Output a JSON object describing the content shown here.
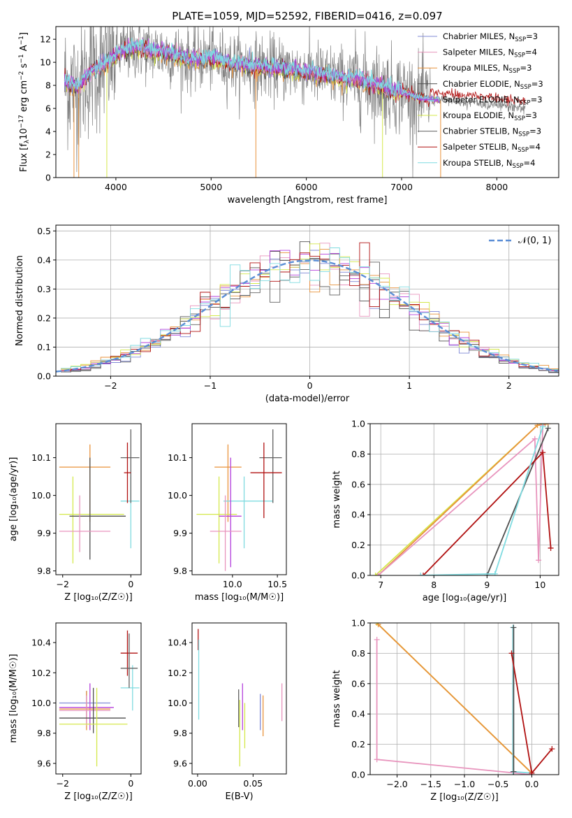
{
  "figure": {
    "title": "PLATE=1059, MJD=52592, FIBERID=0416, z=0.097"
  },
  "models": [
    {
      "id": "cm",
      "name": "Chabrier MILES",
      "nssp": "3",
      "color": "#7f88d6"
    },
    {
      "id": "sm",
      "name": "Salpeter MILES",
      "nssp": "4",
      "color": "#e894bd"
    },
    {
      "id": "km",
      "name": "Kroupa MILES",
      "nssp": "3",
      "color": "#e8923a"
    },
    {
      "id": "ce",
      "name": "Chabrier ELODIE",
      "nssp": "3",
      "color": "#4f4f4f"
    },
    {
      "id": "se",
      "name": "Salpeter ELODIE",
      "nssp": "3",
      "color": "#b43fdc"
    },
    {
      "id": "ke",
      "name": "Kroupa ELODIE",
      "nssp": "3",
      "color": "#d4e84a"
    },
    {
      "id": "cs",
      "name": "Chabrier STELIB",
      "nssp": "3",
      "color": "#606060"
    },
    {
      "id": "ss",
      "name": "Salpeter STELIB",
      "nssp": "4",
      "color": "#b01010"
    },
    {
      "id": "ks",
      "name": "Kroupa STELIB",
      "nssp": "4",
      "color": "#7fdbe0"
    }
  ],
  "chart_data": [
    {
      "id": "spectrum",
      "type": "line",
      "xlabel": "wavelength [Angstrom, rest frame]",
      "ylabel_main": "Flux [f",
      "ylabel_sub": "λ",
      "ylabel_mid": "10",
      "ylabel_sup1": "−17",
      "ylabel_end1": " erg cm",
      "ylabel_sup2": "−2",
      "ylabel_end2": " s",
      "ylabel_sup3": "−1",
      "ylabel_end3": " A",
      "ylabel_sup4": "−1",
      "ylabel_close": "]",
      "xlim": [
        3370,
        8650
      ],
      "ylim": [
        0,
        13.1
      ],
      "xticks": [
        4000,
        5000,
        6000,
        7000,
        8000
      ],
      "yticks": [
        0,
        2,
        4,
        6,
        8,
        10,
        12
      ],
      "continuum": {
        "x": [
          3450,
          3600,
          3750,
          3900,
          4050,
          4200,
          4350,
          4500,
          4650,
          4800,
          5000,
          5200,
          5400,
          5600,
          5800,
          6000,
          6200,
          6400,
          6600,
          6800,
          7000,
          7200,
          7400,
          7600,
          7800,
          8000,
          8200,
          8300
        ],
        "y": [
          8.3,
          7.8,
          9.3,
          9.9,
          10.9,
          11.3,
          11.0,
          10.9,
          10.5,
          10.2,
          10.4,
          9.9,
          9.7,
          9.5,
          9.4,
          9.2,
          8.9,
          8.6,
          8.4,
          7.8,
          7.4,
          6.9,
          6.7,
          6.6,
          6.5,
          6.3,
          6.1,
          6.0
        ]
      }
    },
    {
      "id": "residuals",
      "type": "histogram",
      "xlabel": "(data-model)/error",
      "ylabel": "Normed distribution",
      "xlim": [
        -2.55,
        2.5
      ],
      "ylim": [
        0,
        0.52
      ],
      "xticks": [
        -2,
        -1,
        0,
        1,
        2
      ],
      "yticks": [
        0.0,
        0.1,
        0.2,
        0.3,
        0.4,
        0.5
      ],
      "legend": "𝒩(0, 1)",
      "legend_position": "top-right",
      "grid": true
    },
    {
      "id": "age_vs_Z",
      "type": "errorbar",
      "xlabel": "Z [log₁₀(Z/Z☉)]",
      "ylabel": "age  [log₁₀(age/yr)]",
      "xlim": [
        -2.2,
        0.3
      ],
      "ylim": [
        9.79,
        10.19
      ],
      "xticks": [
        -2,
        0
      ],
      "yticks": [
        9.8,
        9.9,
        10.0,
        10.1
      ],
      "points": [
        {
          "m": "km",
          "x": -1.2,
          "xe": [
            -2.1,
            -0.6
          ],
          "y": 10.075,
          "ye": [
            9.93,
            10.135
          ]
        },
        {
          "m": "ks",
          "x": 0.0,
          "xe": [
            -0.3,
            0.25
          ],
          "y": 9.985,
          "ye": [
            9.86,
            10.05
          ]
        },
        {
          "m": "ke",
          "x": -1.7,
          "xe": [
            -2.1,
            -0.2
          ],
          "y": 9.95,
          "ye": [
            9.82,
            10.05
          ]
        },
        {
          "m": "ce",
          "x": -1.2,
          "xe": [
            -1.8,
            -0.15
          ],
          "y": 9.945,
          "ye": [
            9.83,
            10.1
          ]
        },
        {
          "m": "sm",
          "x": -1.5,
          "xe": [
            -2.1,
            -0.6
          ],
          "y": 9.905,
          "ye": [
            9.85,
            10.0
          ]
        },
        {
          "m": "cs",
          "x": 0.0,
          "xe": [
            -0.3,
            0.25
          ],
          "y": 10.1,
          "ye": [
            9.98,
            10.175
          ]
        },
        {
          "m": "ss",
          "x": -0.1,
          "xe": [
            -0.2,
            0.0
          ],
          "y": 10.06,
          "ye": [
            9.98,
            10.14
          ]
        }
      ]
    },
    {
      "id": "age_vs_mass",
      "type": "errorbar",
      "xlabel": "mass [log₁₀(M/M☉)]",
      "ylabel": "",
      "xlim": [
        9.55,
        10.6
      ],
      "ylim": [
        9.79,
        10.19
      ],
      "xticks": [
        10.0,
        10.5
      ],
      "yticks": [
        9.8,
        9.9,
        10.0,
        10.1
      ],
      "points": [
        {
          "m": "km",
          "x": 9.95,
          "xe": [
            9.8,
            10.1
          ],
          "y": 10.075,
          "ye": [
            9.93,
            10.135
          ]
        },
        {
          "m": "ks",
          "x": 10.13,
          "xe": [
            9.9,
            10.45
          ],
          "y": 9.985,
          "ye": [
            9.86,
            10.05
          ]
        },
        {
          "m": "ke",
          "x": 9.85,
          "xe": [
            9.6,
            10.05
          ],
          "y": 9.95,
          "ye": [
            9.82,
            10.05
          ]
        },
        {
          "m": "se",
          "x": 9.98,
          "xe": [
            9.85,
            10.1
          ],
          "y": 9.945,
          "ye": [
            9.81,
            10.1
          ]
        },
        {
          "m": "cs",
          "x": 10.45,
          "xe": [
            10.3,
            10.55
          ],
          "y": 10.1,
          "ye": [
            9.98,
            10.175
          ]
        },
        {
          "m": "ss",
          "x": 10.35,
          "xe": [
            10.2,
            10.55
          ],
          "y": 10.06,
          "ye": [
            9.94,
            10.14
          ]
        },
        {
          "m": "sm",
          "x": 9.92,
          "xe": [
            9.75,
            10.1
          ],
          "y": 9.905,
          "ye": [
            9.8,
            10.0
          ]
        }
      ]
    },
    {
      "id": "cum_age",
      "type": "line",
      "xlabel": "age  [log₁₀(age/yr)]",
      "ylabel": "mass weight",
      "xlim": [
        6.8,
        10.35
      ],
      "ylim": [
        0.0,
        1.0
      ],
      "xticks": [
        7,
        8,
        9,
        10
      ],
      "yticks": [
        0.0,
        0.2,
        0.4,
        0.6,
        0.8,
        1.0
      ],
      "grid": true,
      "series": [
        {
          "m": "ke",
          "x": [
            6.9,
            9.95,
            10.1
          ],
          "y": [
            0.0,
            0.99,
            1.0
          ]
        },
        {
          "m": "km",
          "x": [
            6.95,
            9.95,
            10.15
          ],
          "y": [
            0.0,
            0.99,
            1.0
          ]
        },
        {
          "m": "sm",
          "x": [
            6.95,
            9.9,
            9.97,
            10.05
          ],
          "y": [
            0.0,
            0.9,
            0.1,
            0.99
          ]
        },
        {
          "m": "ce",
          "x": [
            9.0,
            10.15
          ],
          "y": [
            0.0,
            0.97
          ]
        },
        {
          "m": "ss",
          "x": [
            7.8,
            10.05,
            10.2
          ],
          "y": [
            0.0,
            0.81,
            0.18
          ]
        },
        {
          "m": "ks",
          "x": [
            7.75,
            9.15,
            10.05
          ],
          "y": [
            0.0,
            0.01,
            0.98
          ]
        }
      ]
    },
    {
      "id": "mass_vs_Z",
      "type": "errorbar",
      "xlabel": "Z [log₁₀(Z/Z☉)]",
      "ylabel": "mass [log₁₀(M/M☉)]",
      "xlim": [
        -2.2,
        0.3
      ],
      "ylim": [
        9.53,
        10.53
      ],
      "xticks": [
        -2,
        0
      ],
      "yticks": [
        9.6,
        9.8,
        10.0,
        10.2,
        10.4
      ],
      "points": [
        {
          "m": "cm",
          "x": -1.3,
          "xe": [
            -2.1,
            -0.6
          ],
          "y": 10.0,
          "ye": [
            9.9,
            10.08
          ]
        },
        {
          "m": "se",
          "x": -1.2,
          "xe": [
            -2.1,
            -0.5
          ],
          "y": 9.97,
          "ye": [
            9.82,
            10.13
          ]
        },
        {
          "m": "km",
          "x": -1.3,
          "xe": [
            -2.1,
            -0.6
          ],
          "y": 9.96,
          "ye": [
            9.82,
            10.08
          ]
        },
        {
          "m": "sm",
          "x": -1.3,
          "xe": [
            -2.1,
            -0.6
          ],
          "y": 9.95,
          "ye": [
            9.85,
            10.05
          ]
        },
        {
          "m": "ce",
          "x": -1.1,
          "xe": [
            -2.1,
            -0.15
          ],
          "y": 9.9,
          "ye": [
            9.8,
            10.1
          ]
        },
        {
          "m": "ke",
          "x": -1.0,
          "xe": [
            -2.1,
            -0.1
          ],
          "y": 9.86,
          "ye": [
            9.58,
            10.1
          ]
        },
        {
          "m": "ks",
          "x": 0.05,
          "xe": [
            -0.3,
            0.25
          ],
          "y": 10.1,
          "ye": [
            9.95,
            10.25
          ]
        },
        {
          "m": "ss",
          "x": -0.1,
          "xe": [
            -0.3,
            0.2
          ],
          "y": 10.33,
          "ye": [
            10.18,
            10.48
          ]
        },
        {
          "m": "cs",
          "x": -0.05,
          "xe": [
            -0.3,
            0.2
          ],
          "y": 10.23,
          "ye": [
            10.1,
            10.46
          ]
        }
      ]
    },
    {
      "id": "mass_vs_ebv",
      "type": "errorbar",
      "xlabel": "E(B-V)",
      "ylabel": "",
      "xlim": [
        -0.005,
        0.08
      ],
      "ylim": [
        9.53,
        10.53
      ],
      "xticks": [
        0.0,
        0.05
      ],
      "xticklabels": [
        "0.00",
        "0.05"
      ],
      "yticks": [
        9.6,
        9.8,
        10.0,
        10.2,
        10.4
      ],
      "points": [
        {
          "m": "ss",
          "x": 0.0005,
          "y": 10.42,
          "ye": [
            10.35,
            10.49
          ]
        },
        {
          "m": "ks",
          "x": 0.001,
          "y": 10.2,
          "ye": [
            9.89,
            10.42
          ]
        },
        {
          "m": "cs",
          "x": 0.037,
          "y": 9.93,
          "ye": [
            9.84,
            10.09
          ]
        },
        {
          "m": "ke",
          "x": 0.038,
          "y": 9.8,
          "ye": [
            9.58,
            10.02
          ]
        },
        {
          "m": "se",
          "x": 0.0405,
          "y": 9.97,
          "ye": [
            9.82,
            10.13
          ]
        },
        {
          "m": "ke",
          "x": 0.0425,
          "y": 9.86,
          "ye": [
            9.7,
            10.0
          ]
        },
        {
          "m": "cm",
          "x": 0.0565,
          "y": 9.95,
          "ye": [
            9.82,
            10.06
          ]
        },
        {
          "m": "km",
          "x": 0.059,
          "y": 9.93,
          "ye": [
            9.78,
            10.05
          ]
        },
        {
          "m": "sm",
          "x": 0.076,
          "y": 10.0,
          "ye": [
            9.88,
            10.13
          ]
        }
      ]
    },
    {
      "id": "cum_Z",
      "type": "line",
      "xlabel": "Z [log₁₀(Z/Z☉)]",
      "ylabel": "mass weight",
      "xlim": [
        -2.4,
        0.4
      ],
      "ylim": [
        0.0,
        1.0
      ],
      "xticks": [
        -2.0,
        -1.5,
        -1.0,
        -0.5,
        0.0
      ],
      "xticklabels": [
        "−2.0",
        "−1.5",
        "−1.0",
        "−0.5",
        "0.0"
      ],
      "yticks": [
        0.0,
        0.2,
        0.4,
        0.6,
        0.8,
        1.0
      ],
      "grid": true,
      "series": [
        {
          "m": "ke",
          "x": [
            -2.3,
            0.0
          ],
          "y": [
            1.0,
            0.01
          ]
        },
        {
          "m": "km",
          "x": [
            -2.28,
            0.0
          ],
          "y": [
            0.99,
            0.01
          ]
        },
        {
          "m": "sm",
          "x": [
            -2.3,
            -2.3,
            0.0
          ],
          "y": [
            0.89,
            0.1,
            0.0
          ]
        },
        {
          "m": "ks",
          "x": [
            -0.28,
            -0.28,
            0.0
          ],
          "y": [
            0.97,
            0.02,
            0.01
          ]
        },
        {
          "m": "ce",
          "x": [
            -0.27,
            -0.27
          ],
          "y": [
            0.97,
            0.02
          ]
        },
        {
          "m": "ss",
          "x": [
            -0.3,
            0.0,
            0.3
          ],
          "y": [
            0.8,
            0.01,
            0.17
          ]
        }
      ]
    }
  ]
}
